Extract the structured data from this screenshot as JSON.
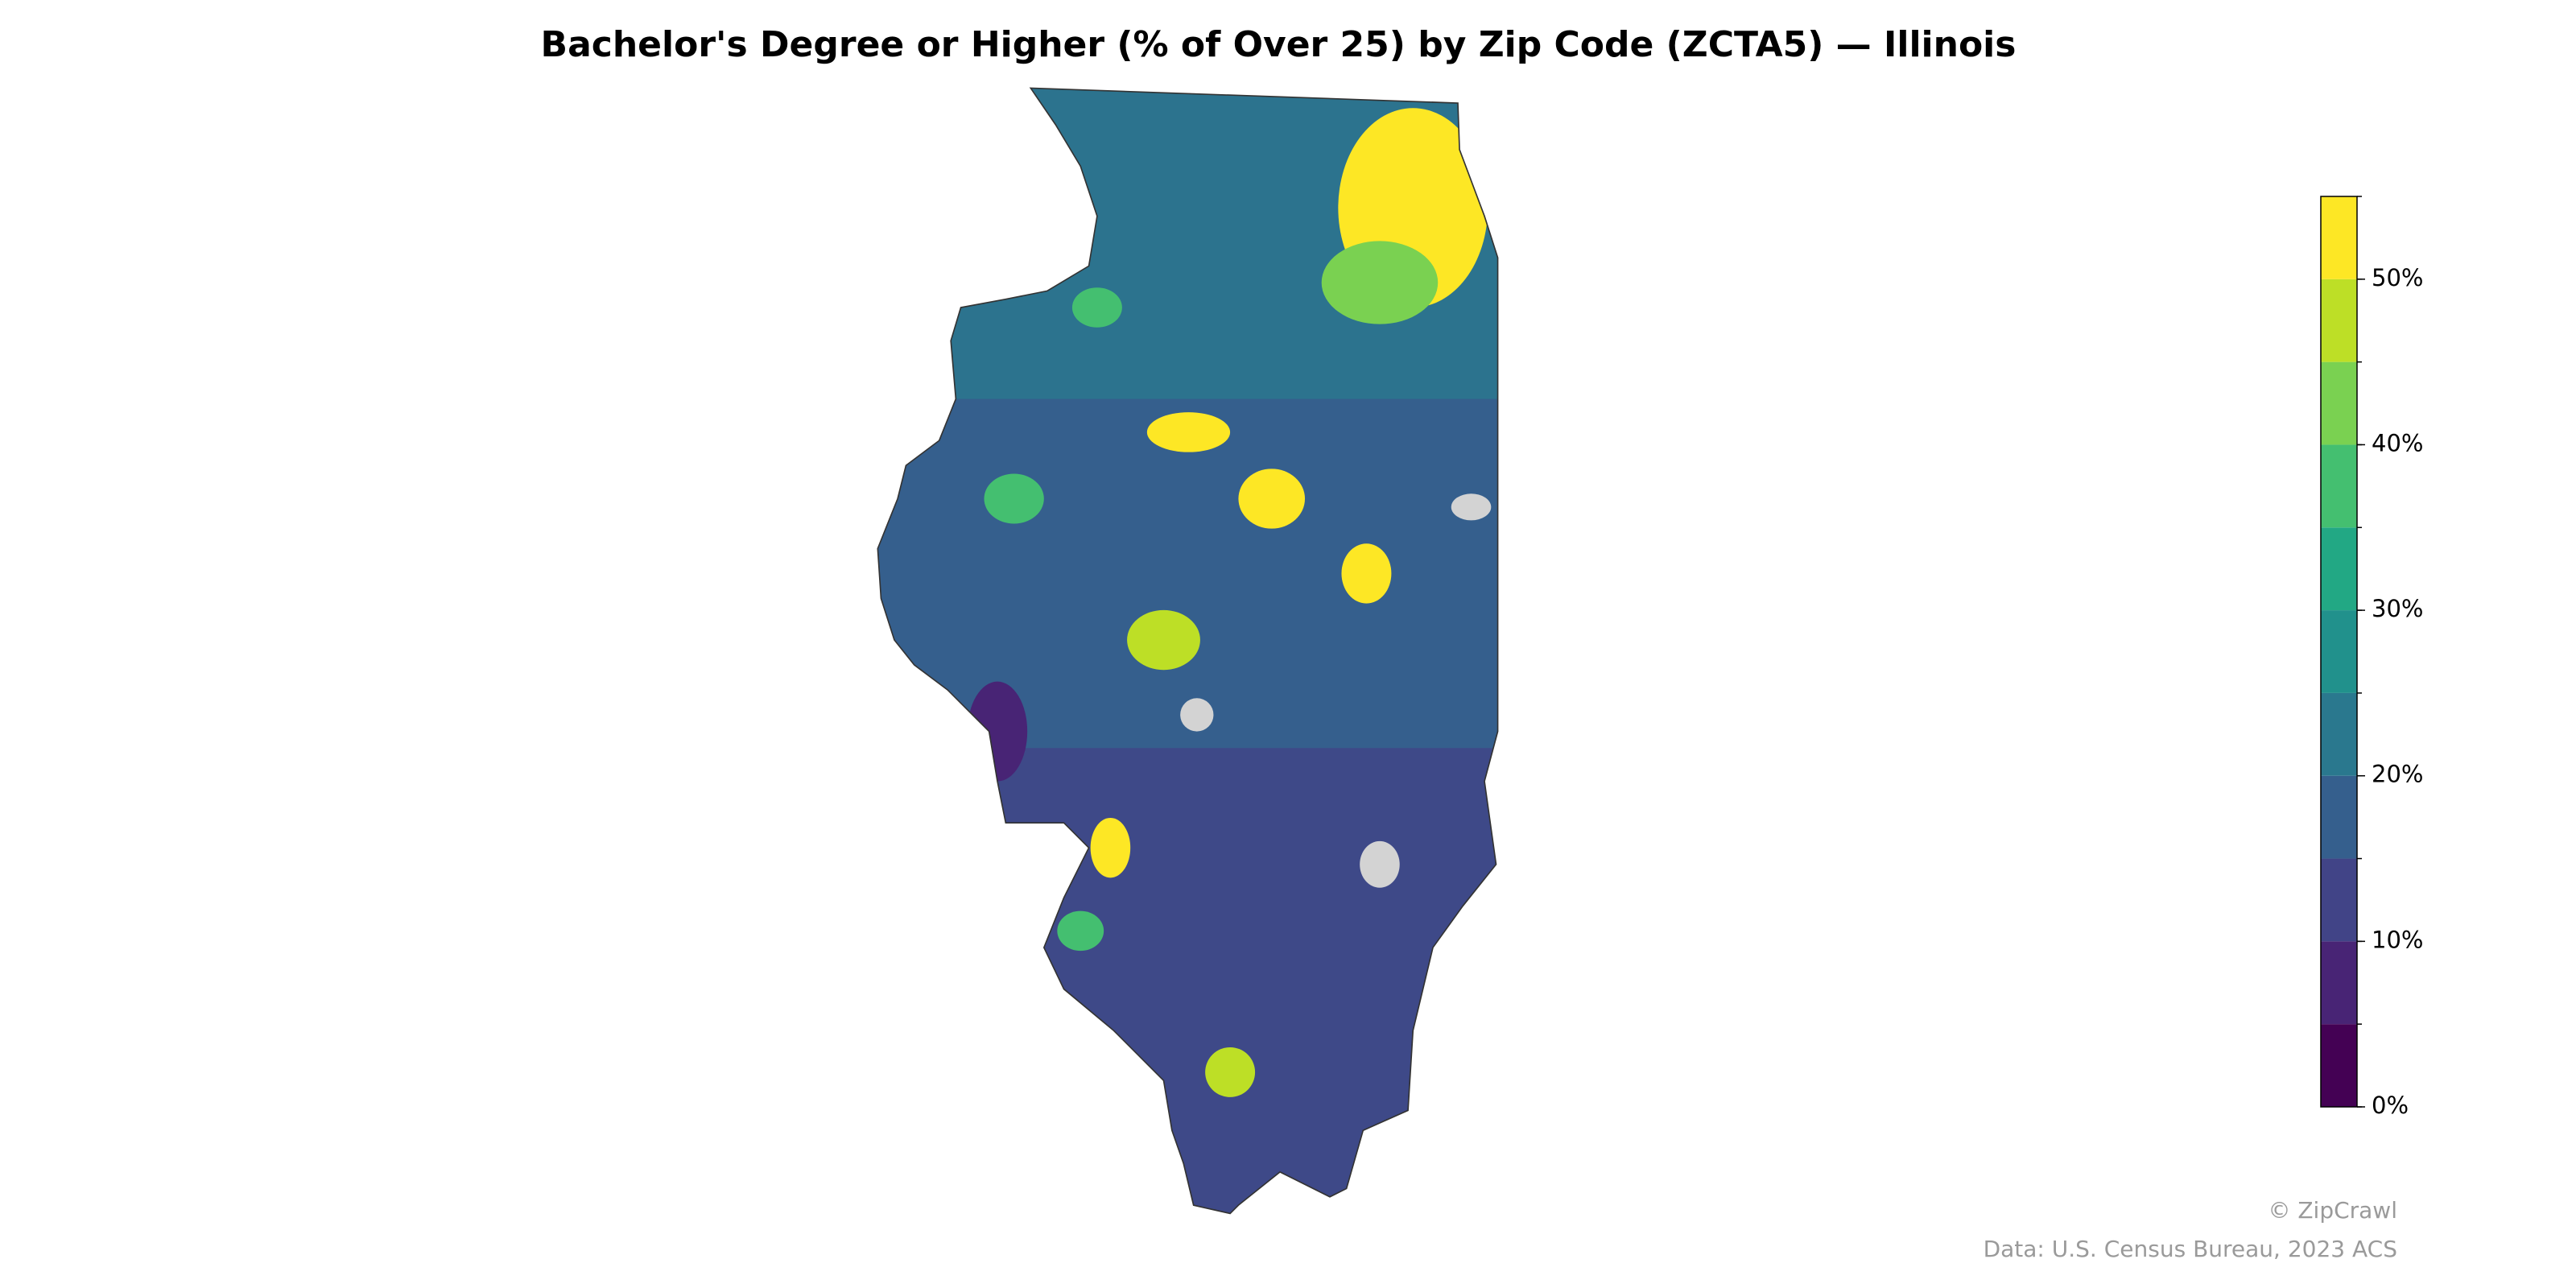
{
  "map": {
    "title": "Bachelor's Degree or Higher (% of Over 25) by Zip Code (ZCTA5) — Illinois",
    "colorbar": {
      "lim": [
        0,
        55
      ],
      "bins": [
        0,
        5,
        10,
        15,
        20,
        25,
        30,
        35,
        40,
        45,
        50,
        55
      ],
      "colors": [
        "#440154",
        "#482475",
        "#414487",
        "#355f8d",
        "#2a788e",
        "#21918c",
        "#22a884",
        "#44bf70",
        "#7ad151",
        "#bddf26",
        "#fde725"
      ],
      "ticks": [
        {
          "value": 0,
          "label": "0%"
        },
        {
          "value": 10,
          "label": "10%"
        },
        {
          "value": 20,
          "label": "20%"
        },
        {
          "value": 30,
          "label": "30%"
        },
        {
          "value": 40,
          "label": "40%"
        },
        {
          "value": 50,
          "label": "50%"
        }
      ]
    },
    "credit": "© ZipCrawl",
    "source": "Data: U.S. Census Bureau, 2023 ACS"
  }
}
